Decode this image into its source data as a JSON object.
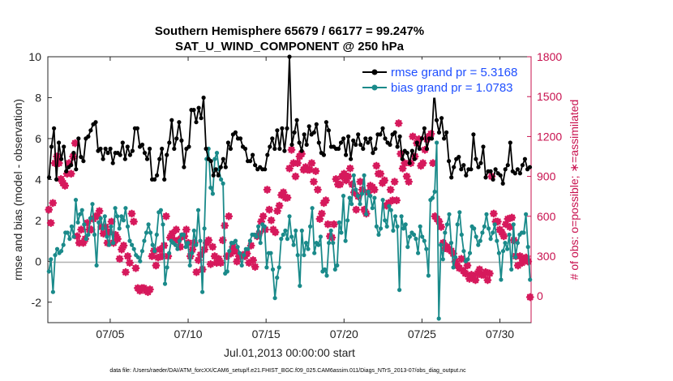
{
  "chart_data": {
    "type": "line",
    "title_line1": "Southern Hemisphere 65679 / 66177 = 99.247%",
    "title_line2": "SAT_U_WIND_COMPONENT @ 250 hPa",
    "xlabel": "Jul.01,2013 00:00:00 start",
    "ylabel": "rmse and bias (model - observation)",
    "ylabel_right": "# of obs: o=possible; ∗=assimilated",
    "footnote": "data file: /Users/raeder/DAI/ATM_forcXX/CAM6_setup/f.e21.FHIST_BGC.f09_025.CAM6assim.011/Diags_NTrS_2013-07/obs_diag_output.nc",
    "xlim": [
      1,
      32
    ],
    "ylim": [
      -3,
      10
    ],
    "ylim_right": [
      -200,
      1800
    ],
    "x_ticks": [
      5,
      10,
      15,
      20,
      25,
      30
    ],
    "x_tick_labels": [
      "07/05",
      "07/10",
      "07/15",
      "07/20",
      "07/25",
      "07/30"
    ],
    "y_ticks": [
      -2,
      0,
      2,
      4,
      6,
      8,
      10
    ],
    "y_ticks_right": [
      0,
      300,
      600,
      900,
      1200,
      1500,
      1800
    ],
    "legend_position": "top-right",
    "colors": {
      "rmse": "#000000",
      "bias": "#1a8a8a",
      "obs": "#d6195c",
      "zero_line": "#b0b0b0"
    },
    "series": [
      {
        "name": "rmse grand pr = 5.3168",
        "values": [
          4.1,
          5.6,
          6.5,
          4.0,
          5.8,
          5.0,
          5.6,
          4.4,
          4.6,
          4.7,
          5.3,
          4.5,
          6.0,
          5.1,
          4.9,
          6.0,
          6.1,
          6.4,
          6.7,
          6.8,
          5.4,
          5.5,
          5.0,
          5.5,
          5.3,
          5.5,
          4.8,
          5.3,
          5.3,
          5.2,
          5.8,
          5.0,
          5.6,
          5.2,
          5.4,
          6.5,
          6.5,
          5.6,
          5.7,
          5.3,
          5.0,
          5.5,
          4.0,
          4.0,
          4.2,
          5.0,
          5.5,
          4.0,
          5.2,
          5.8,
          6.9,
          5.5,
          6.0,
          6.8,
          5.9,
          4.6,
          5.5,
          5.6,
          7.4,
          7.4,
          6.8,
          7.5,
          7.0,
          8.0,
          5.5,
          5.0,
          4.9,
          4.2,
          4.5,
          4.2,
          4.6,
          5.0,
          4.6,
          5.8,
          5.5,
          6.2,
          6.3,
          6.0,
          6.0,
          5.6,
          5.5,
          4.9,
          4.9,
          5.2,
          4.7,
          4.5,
          4.6,
          4.5,
          4.5,
          5.2,
          5.6,
          6.0,
          5.5,
          6.4,
          5.5,
          6.5,
          5.4,
          6.5,
          10.0,
          5.7,
          6.3,
          6.9,
          5.8,
          5.4,
          6.2,
          5.7,
          6.6,
          6.2,
          6.3,
          6.7,
          5.8,
          5.3,
          5.2,
          6.8,
          6.4,
          5.6,
          5.6,
          5.5,
          5.5,
          5.8,
          6.0,
          5.2,
          6.1,
          5.0,
          5.9,
          5.7,
          6.2,
          5.7,
          5.5,
          6.0,
          5.8,
          6.0,
          5.3,
          5.5,
          6.2,
          6.2,
          6.5,
          6.0,
          5.8,
          5.7,
          6.2,
          6.3,
          5.6,
          6.1,
          5.0,
          5.4,
          5.3,
          4.8,
          5.4,
          5.0,
          5.8,
          5.5,
          6.0,
          6.5,
          5.5,
          6.0,
          6.0,
          8.3,
          6.9,
          6.3,
          7.0,
          6.0,
          6.3,
          4.9,
          4.1,
          4.6,
          5.0,
          5.1,
          4.5,
          4.7,
          4.2,
          4.5,
          4.5,
          6.2,
          5.0,
          4.6,
          4.8,
          5.6,
          4.1,
          4.4,
          4.4,
          4.0,
          4.5,
          4.3,
          4.2,
          3.8,
          4.5,
          4.7,
          5.8,
          4.4,
          4.3,
          4.5,
          4.3,
          4.7,
          5.0,
          4.5,
          4.6
        ]
      },
      {
        "name": "bias grand pr = 1.0783",
        "values": [
          -0.5,
          0.1,
          -1.5,
          0.3,
          0.6,
          0.4,
          0.5,
          0.8,
          1.4,
          1.4,
          1.1,
          1.7,
          1.2,
          3.0,
          1.9,
          2.3,
          2.5,
          1.8,
          1.1,
          1.3,
          2.1,
          2.8,
          1.3,
          -0.2,
          1.9,
          2.1,
          1.6,
          2.2,
          1.2,
          0.8,
          1.7,
          0.9,
          2.6,
          2.2,
          1.6,
          2.2,
          2.0,
          2.6,
          1.7,
          1.0,
          0.8,
          0.6,
          0.3,
          0.2,
          0.0,
          0.5,
          1.0,
          1.4,
          1.8,
          1.4,
          0.8,
          0.5,
          1.3,
          2.4,
          2.5,
          1.8,
          -1.1,
          -0.3,
          0.4,
          1.0,
          0.9,
          0.8,
          0.6,
          1.0,
          1.3,
          1.3,
          0.7,
          0.9,
          -0.2,
          0.4,
          1.5,
          0.8,
          2.5,
          1.0,
          -1.5,
          1.6,
          5.0,
          5.5,
          3.6,
          3.3,
          5.0,
          5.3,
          4.5,
          4.0,
          3.8,
          -0.6,
          -0.5,
          0.5,
          0.9,
          0.9,
          1.0,
          0.7,
          0.4,
          -0.2,
          0.3,
          0.6,
          0.6,
          1.0,
          1.3,
          1.3,
          1.2,
          1.7,
          0.9,
          1.8,
          1.7,
          -0.3,
          0.4,
          0.4,
          -0.4,
          -1.8,
          -0.8,
          -0.3,
          1.1,
          1.3,
          1.5,
          1.1,
          2.2,
          1.2,
          0.8,
          1.5,
          0.3,
          -1.2,
          1.5,
          0.3,
          0.9,
          0.6,
          1.7,
          2.6,
          0.4,
          0.9,
          0.8,
          1.2,
          -0.5,
          -0.4,
          -0.7,
          0.9,
          1.5,
          0.9,
          -0.4,
          -0.2,
          1.9,
          1.4,
          3.2,
          1.0,
          2.0,
          3.1,
          2.8,
          4.2,
          3.5,
          3.2,
          2.8,
          3.3,
          4.2,
          2.3,
          3.4,
          3.2,
          2.6,
          3.1,
          1.7,
          1.3,
          1.6,
          3.0,
          2.0,
          1.7,
          2.7,
          2.5,
          1.5,
          2.2,
          1.7,
          -1.4,
          2.2,
          1.6,
          1.8,
          0.7,
          1.2,
          1.4,
          1.3,
          1.1,
          0.4,
          1.7,
          1.2,
          1.0,
          0.6,
          -0.7,
          3.0,
          3.1,
          3.4,
          5.8,
          -2.8,
          0.8,
          0.1,
          1.4,
          1.8,
          2.3,
          0.9,
          -0.3,
          0.2,
          1.8,
          2.4,
          1.3,
          0.5,
          0.0,
          0.1,
          0.4,
          1.7,
          1.6,
          1.2,
          0.8,
          1.0,
          1.4,
          1.7,
          2.3,
          1.6,
          1.1,
          1.4,
          1.8,
          1.0,
          0.4,
          -0.9,
          0.5,
          0.9,
          0.6,
          1.3,
          -0.4,
          1.8,
          0.2,
          0.9,
          1.3,
          1.4,
          1.4,
          2.3,
          0.7,
          -0.9
        ]
      },
      {
        "name": "assimilated observations",
        "axis": "right",
        "values": [
          650,
          550,
          700,
          1000,
          1050,
          1000,
          880,
          850,
          830,
          920,
          1000,
          920,
          1050,
          1150,
          450,
          400,
          500,
          400,
          430,
          550,
          500,
          500,
          580,
          600,
          600,
          640,
          520,
          470,
          520,
          400,
          480,
          560,
          400,
          460,
          430,
          280,
          350,
          380,
          180,
          300,
          250,
          620,
          560,
          210,
          60,
          40,
          60,
          60,
          40,
          30,
          50,
          300,
          340,
          230,
          290,
          350,
          300,
          380,
          600,
          300,
          440,
          470,
          420,
          500,
          420,
          370,
          450,
          450,
          500,
          400,
          300,
          350,
          400,
          180,
          270,
          310,
          200,
          350,
          400,
          420,
          240,
          370,
          300,
          250,
          280,
          250,
          420,
          530,
          300,
          600,
          320,
          370,
          340,
          260,
          300,
          300,
          310,
          300,
          320,
          250,
          380,
          270,
          220,
          450,
          470,
          560,
          600,
          500,
          800,
          650,
          570,
          500,
          480,
          640,
          680,
          760,
          780,
          740,
          740,
          960,
          1100,
          1000,
          900,
          1000,
          1050,
          1070,
          950,
          970,
          950,
          950,
          1000,
          860,
          940,
          800,
          580,
          620,
          700,
          720,
          540,
          450,
          440,
          540,
          880,
          840,
          840,
          900,
          920,
          870,
          900,
          960,
          840,
          780,
          650,
          750,
          860,
          800,
          650,
          620,
          780,
          830,
          820,
          800,
          980,
          920,
          920,
          850,
          870,
          680,
          700,
          800,
          720,
          860,
          720,
          1300,
          1070,
          960,
          1000,
          900,
          860,
          1000,
          1200,
          1050,
          1150,
          1180,
          980,
          1000,
          1100,
          1180,
          1200,
          1220,
          1000,
          600,
          580,
          560,
          520,
          400,
          360,
          370,
          350,
          340,
          320,
          260,
          230,
          210,
          280,
          190,
          170,
          230,
          130,
          160,
          130,
          120,
          170,
          200,
          160,
          160,
          180,
          120,
          170,
          900,
          620,
          560,
          560,
          500,
          480,
          450,
          540,
          580,
          520,
          590,
          420,
          300,
          230,
          300,
          250,
          270,
          290,
          260,
          -8
        ]
      }
    ]
  }
}
